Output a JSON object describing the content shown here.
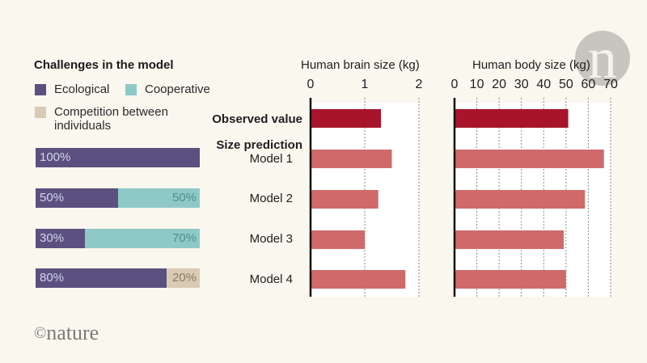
{
  "legend": {
    "title": "Challenges in the model",
    "items": [
      {
        "key": "ecological",
        "label": "Ecological",
        "color": "#5a5180"
      },
      {
        "key": "cooperative",
        "label": "Cooperative",
        "color": "#8ec9c7"
      },
      {
        "key": "competition",
        "label": "Competition between individuals",
        "label_line1": "Competition between",
        "label_line2": "individuals",
        "color": "#d9cbb3"
      }
    ]
  },
  "row_labels": {
    "observed": "Observed value",
    "prediction_header": "Size prediction",
    "models": [
      "Model 1",
      "Model 2",
      "Model 3",
      "Model 4"
    ]
  },
  "colors": {
    "background": "#f9f7ee",
    "observed": "#a8152b",
    "prediction": "#d06a6a",
    "plot_bg": "#ffffff",
    "axis": "#111111"
  },
  "footer": {
    "copyright": "©",
    "brand": "nature"
  },
  "chart_data": [
    {
      "type": "bar",
      "orientation": "horizontal-stacked",
      "title": "Challenges in the model",
      "categories": [
        "Model 1",
        "Model 2",
        "Model 3",
        "Model 4"
      ],
      "series": [
        {
          "name": "Ecological",
          "values": [
            100,
            50,
            30,
            80
          ],
          "labels": [
            "100%",
            "50%",
            "30%",
            "80%"
          ]
        },
        {
          "name": "Cooperative",
          "values": [
            0,
            50,
            70,
            0
          ],
          "labels": [
            "",
            "50%",
            "70%",
            ""
          ]
        },
        {
          "name": "Competition between individuals",
          "values": [
            0,
            0,
            0,
            20
          ],
          "labels": [
            "",
            "",
            "",
            "20%"
          ]
        }
      ],
      "xlim": [
        0,
        100
      ],
      "legend": "top"
    },
    {
      "type": "bar",
      "orientation": "horizontal",
      "title": "Human brain size (kg)",
      "categories": [
        "Observed value",
        "Model 1",
        "Model 2",
        "Model 3",
        "Model 4"
      ],
      "values": [
        1.3,
        1.5,
        1.25,
        1.0,
        1.75
      ],
      "xlim": [
        0,
        2
      ],
      "ticks": [
        0,
        1,
        2
      ],
      "tick_labels": [
        "0",
        "1",
        "2"
      ],
      "grid": true
    },
    {
      "type": "bar",
      "orientation": "horizontal",
      "title": "Human body size (kg)",
      "categories": [
        "Observed value",
        "Model 1",
        "Model 2",
        "Model 3",
        "Model 4"
      ],
      "values": [
        51,
        67,
        58.5,
        49,
        50
      ],
      "xlim": [
        0,
        70
      ],
      "ticks": [
        0,
        10,
        20,
        30,
        40,
        50,
        60,
        70
      ],
      "tick_labels": [
        "0",
        "10",
        "20",
        "30",
        "40",
        "50",
        "60",
        "70"
      ],
      "grid": true
    }
  ]
}
